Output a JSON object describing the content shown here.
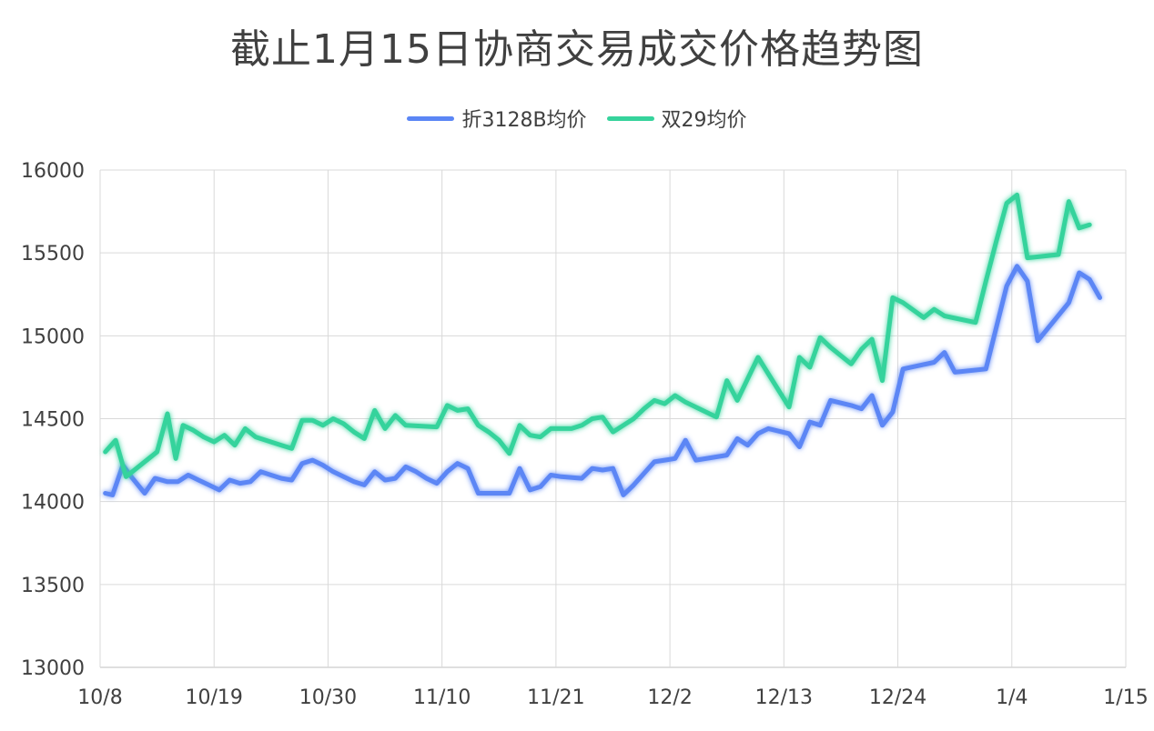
{
  "chart_data": {
    "type": "line",
    "title": "截止1月15日协商交易成交价格趋势图",
    "x_tick_labels": [
      "10/8",
      "10/19",
      "10/30",
      "11/10",
      "11/21",
      "12/2",
      "12/13",
      "12/24",
      "1/4",
      "1/15"
    ],
    "y_tick_labels": [
      "13000",
      "13500",
      "14000",
      "14500",
      "15000",
      "15500",
      "16000"
    ],
    "ylim": [
      13000,
      16000
    ],
    "xlim": [
      0,
      99
    ],
    "grid": true,
    "legend_position": "top-center",
    "series": [
      {
        "name": "折3128B均价",
        "color": "#5b86f5",
        "points": [
          [
            0.5,
            14050
          ],
          [
            1.2,
            14040
          ],
          [
            2.2,
            14220
          ],
          [
            3,
            14150
          ],
          [
            4.3,
            14050
          ],
          [
            5.3,
            14140
          ],
          [
            6.5,
            14120
          ],
          [
            7.5,
            14120
          ],
          [
            8.5,
            14160
          ],
          [
            9.5,
            14130
          ],
          [
            10.5,
            14100
          ],
          [
            11.5,
            14070
          ],
          [
            12.5,
            14130
          ],
          [
            13.5,
            14110
          ],
          [
            14.5,
            14120
          ],
          [
            15.5,
            14180
          ],
          [
            16.5,
            14160
          ],
          [
            17.5,
            14140
          ],
          [
            18.5,
            14130
          ],
          [
            19.5,
            14230
          ],
          [
            20.5,
            14250
          ],
          [
            21.5,
            14220
          ],
          [
            22.5,
            14180
          ],
          [
            23.5,
            14150
          ],
          [
            24.5,
            14120
          ],
          [
            25.5,
            14100
          ],
          [
            26.5,
            14180
          ],
          [
            27.5,
            14130
          ],
          [
            28.5,
            14140
          ],
          [
            29.5,
            14210
          ],
          [
            30.5,
            14180
          ],
          [
            31.5,
            14140
          ],
          [
            32.5,
            14110
          ],
          [
            33.5,
            14180
          ],
          [
            34.5,
            14230
          ],
          [
            35.5,
            14200
          ],
          [
            36.5,
            14050
          ],
          [
            37.5,
            14050
          ],
          [
            38.5,
            14050
          ],
          [
            39.5,
            14050
          ],
          [
            40.5,
            14200
          ],
          [
            41.5,
            14070
          ],
          [
            42.5,
            14090
          ],
          [
            43.5,
            14160
          ],
          [
            44.5,
            14150
          ],
          [
            46.5,
            14140
          ],
          [
            47.5,
            14200
          ],
          [
            48.5,
            14190
          ],
          [
            49.5,
            14200
          ],
          [
            50.5,
            14040
          ],
          [
            51.5,
            14100
          ],
          [
            53.5,
            14240
          ],
          [
            54.5,
            14250
          ],
          [
            55.5,
            14260
          ],
          [
            56.5,
            14370
          ],
          [
            57.5,
            14250
          ],
          [
            60.5,
            14280
          ],
          [
            61.5,
            14380
          ],
          [
            62.5,
            14340
          ],
          [
            63.5,
            14410
          ],
          [
            64.5,
            14440
          ],
          [
            66.5,
            14410
          ],
          [
            67.5,
            14330
          ],
          [
            68.5,
            14480
          ],
          [
            69.5,
            14460
          ],
          [
            70.5,
            14610
          ],
          [
            72.5,
            14580
          ],
          [
            73.5,
            14560
          ],
          [
            74.5,
            14640
          ],
          [
            75.5,
            14460
          ],
          [
            76.5,
            14540
          ],
          [
            77.5,
            14800
          ],
          [
            80.5,
            14840
          ],
          [
            81.5,
            14900
          ],
          [
            82.5,
            14780
          ],
          [
            85.5,
            14800
          ],
          [
            86.5,
            15050
          ],
          [
            87.5,
            15300
          ],
          [
            88.5,
            15420
          ],
          [
            89.5,
            15330
          ],
          [
            90.5,
            14970
          ],
          [
            93.5,
            15200
          ],
          [
            94.5,
            15380
          ],
          [
            95.5,
            15340
          ],
          [
            96.5,
            15230
          ]
        ]
      },
      {
        "name": "双29均价",
        "color": "#36d39c",
        "points": [
          [
            0.5,
            14300
          ],
          [
            1.5,
            14370
          ],
          [
            2.5,
            14150
          ],
          [
            5.5,
            14300
          ],
          [
            6.5,
            14530
          ],
          [
            7.3,
            14260
          ],
          [
            8,
            14460
          ],
          [
            9,
            14430
          ],
          [
            10,
            14390
          ],
          [
            11,
            14360
          ],
          [
            12,
            14400
          ],
          [
            13,
            14340
          ],
          [
            14,
            14440
          ],
          [
            15,
            14390
          ],
          [
            16,
            14370
          ],
          [
            17.5,
            14340
          ],
          [
            18.5,
            14320
          ],
          [
            19.5,
            14490
          ],
          [
            20.5,
            14490
          ],
          [
            21.5,
            14460
          ],
          [
            22.5,
            14500
          ],
          [
            23.5,
            14470
          ],
          [
            24.5,
            14420
          ],
          [
            25.5,
            14380
          ],
          [
            26.5,
            14550
          ],
          [
            27.5,
            14440
          ],
          [
            28.5,
            14520
          ],
          [
            29.5,
            14460
          ],
          [
            32.5,
            14450
          ],
          [
            33.5,
            14580
          ],
          [
            34.5,
            14550
          ],
          [
            35.5,
            14560
          ],
          [
            36.5,
            14460
          ],
          [
            37.5,
            14420
          ],
          [
            38.5,
            14370
          ],
          [
            39.5,
            14290
          ],
          [
            40.5,
            14460
          ],
          [
            41.5,
            14400
          ],
          [
            42.5,
            14390
          ],
          [
            43.5,
            14440
          ],
          [
            45.5,
            14440
          ],
          [
            46.5,
            14460
          ],
          [
            47.5,
            14500
          ],
          [
            48.5,
            14510
          ],
          [
            49.5,
            14420
          ],
          [
            50.5,
            14460
          ],
          [
            51.5,
            14500
          ],
          [
            52.5,
            14560
          ],
          [
            53.5,
            14610
          ],
          [
            54.5,
            14590
          ],
          [
            55.5,
            14640
          ],
          [
            56.5,
            14600
          ],
          [
            59.5,
            14510
          ],
          [
            60.5,
            14730
          ],
          [
            61.5,
            14610
          ],
          [
            62.5,
            14740
          ],
          [
            63.5,
            14870
          ],
          [
            66.5,
            14570
          ],
          [
            67.5,
            14870
          ],
          [
            68.5,
            14810
          ],
          [
            69.5,
            14990
          ],
          [
            70.5,
            14930
          ],
          [
            72.5,
            14830
          ],
          [
            73.5,
            14920
          ],
          [
            74.5,
            14980
          ],
          [
            75.5,
            14730
          ],
          [
            76.5,
            15230
          ],
          [
            77.5,
            15200
          ],
          [
            79.5,
            15110
          ],
          [
            80.5,
            15160
          ],
          [
            81.5,
            15120
          ],
          [
            84.5,
            15080
          ],
          [
            85.5,
            15330
          ],
          [
            86.5,
            15570
          ],
          [
            87.5,
            15800
          ],
          [
            88.5,
            15850
          ],
          [
            89.5,
            15470
          ],
          [
            92.5,
            15490
          ],
          [
            93.5,
            15810
          ],
          [
            94.5,
            15650
          ],
          [
            95.5,
            15670
          ]
        ]
      }
    ]
  }
}
